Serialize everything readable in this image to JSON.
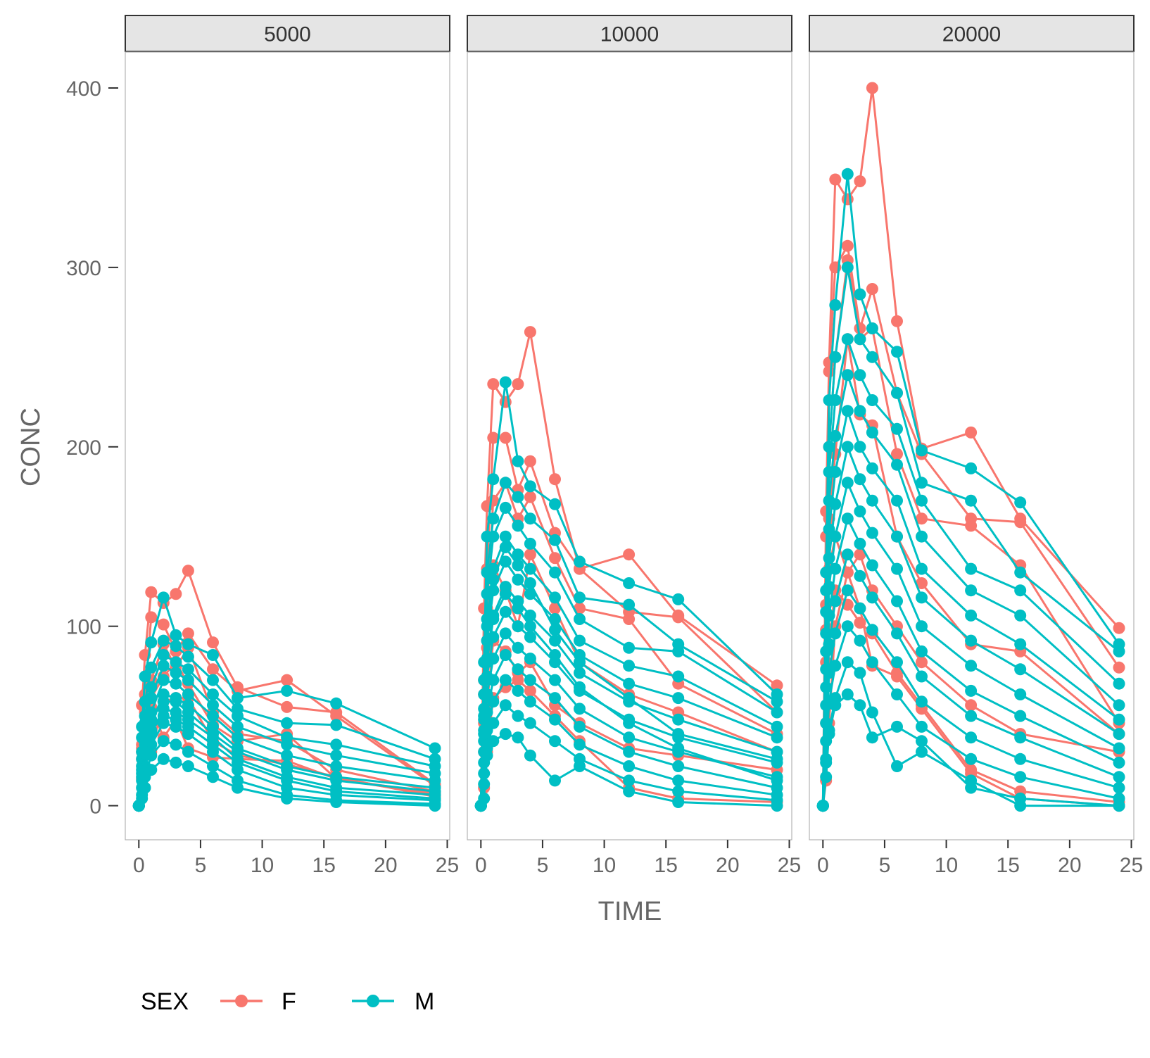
{
  "chart_data": {
    "type": "line",
    "xlabel": "TIME",
    "ylabel": "CONC",
    "xlim": [
      -1.1,
      25.2
    ],
    "ylim": [
      -19,
      420
    ],
    "xticks": [
      0,
      5,
      10,
      15,
      20,
      25
    ],
    "yticks": [
      0,
      100,
      200,
      300,
      400
    ],
    "xtick_labels": [
      "0",
      "5",
      "10",
      "15",
      "20",
      "25"
    ],
    "ytick_labels": [
      "0",
      "100",
      "200",
      "300",
      "400"
    ],
    "grid": false,
    "legend": {
      "title": "SEX",
      "placement": "bottom-left",
      "entries": [
        {
          "label": "F",
          "color": "#F8766D"
        },
        {
          "label": "M",
          "color": "#00BFC4"
        }
      ]
    },
    "x": [
      0,
      0.25,
      0.5,
      1,
      2,
      3,
      4,
      6,
      8,
      12,
      16,
      24
    ],
    "panels": [
      {
        "label": "5000",
        "series": [
          {
            "group": "F",
            "values": [
              0,
              56,
              84,
              119,
              113,
              118,
              131,
              91,
              66,
              55,
              52,
              12
            ]
          },
          {
            "group": "F",
            "values": [
              0,
              34,
              62,
              105,
              101,
              86,
              96,
              76,
              64,
              70,
              50,
              11
            ]
          },
          {
            "group": "F",
            "values": [
              0,
              32,
              52,
              70,
              90,
              77,
              88,
              52,
              40,
              36,
              20,
              8
            ]
          },
          {
            "group": "F",
            "values": [
              0,
              15,
              33,
              55,
              38,
              48,
              32,
              27,
              26,
              25,
              15,
              6
            ]
          },
          {
            "group": "F",
            "values": [
              0,
              26,
              31,
              30,
              58,
              60,
              60,
              36,
              28,
              23,
              16,
              5
            ]
          },
          {
            "group": "F",
            "values": [
              0,
              30,
              45,
              60,
              72,
              80,
              68,
              45,
              36,
              40,
              15,
              7
            ]
          },
          {
            "group": "M",
            "values": [
              0,
              44,
              72,
              91,
              116,
              95,
              90,
              84,
              60,
              64,
              57,
              32
            ]
          },
          {
            "group": "M",
            "values": [
              0,
              38,
              58,
              77,
              92,
              89,
              83,
              70,
              54,
              46,
              45,
              26
            ]
          },
          {
            "group": "M",
            "values": [
              0,
              30,
              50,
              66,
              84,
              80,
              76,
              62,
              50,
              38,
              34,
              22
            ]
          },
          {
            "group": "M",
            "values": [
              0,
              26,
              46,
              60,
              78,
              74,
              70,
              56,
              44,
              34,
              28,
              18
            ]
          },
          {
            "group": "M",
            "values": [
              0,
              22,
              40,
              52,
              70,
              68,
              62,
              50,
              38,
              28,
              22,
              14
            ]
          },
          {
            "group": "M",
            "values": [
              0,
              18,
              34,
              46,
              62,
              60,
              56,
              44,
              32,
              22,
              16,
              10
            ]
          },
          {
            "group": "M",
            "values": [
              0,
              14,
              28,
              40,
              54,
              52,
              48,
              38,
              26,
              16,
              10,
              6
            ]
          },
          {
            "group": "M",
            "values": [
              0,
              10,
              22,
              34,
              46,
              44,
              40,
              30,
              20,
              10,
              6,
              3
            ]
          },
          {
            "group": "M",
            "values": [
              0,
              6,
              16,
              28,
              36,
              34,
              30,
              22,
              14,
              6,
              3,
              1
            ]
          },
          {
            "group": "M",
            "values": [
              0,
              4,
              10,
              20,
              26,
              24,
              22,
              16,
              10,
              4,
              2,
              0
            ]
          },
          {
            "group": "M",
            "values": [
              0,
              20,
              36,
              48,
              58,
              58,
              52,
              40,
              30,
              20,
              14,
              8
            ]
          },
          {
            "group": "M",
            "values": [
              0,
              16,
              30,
              42,
              50,
              48,
              44,
              34,
              24,
              14,
              8,
              4
            ]
          }
        ]
      },
      {
        "label": "10000",
        "series": [
          {
            "group": "F",
            "values": [
              0,
              110,
              167,
              235,
              225,
              235,
              264,
              182,
              132,
              140,
              106,
              67
            ]
          },
          {
            "group": "F",
            "values": [
              0,
              70,
              132,
              205,
              205,
              176,
              192,
              152,
              132,
              108,
              105,
              52
            ]
          },
          {
            "group": "F",
            "values": [
              0,
              62,
              110,
              170,
              180,
              160,
              172,
              138,
              110,
              104,
              68,
              40
            ]
          },
          {
            "group": "F",
            "values": [
              0,
              46,
              88,
              134,
              120,
              100,
              140,
              110,
              80,
              62,
              52,
              30
            ]
          },
          {
            "group": "F",
            "values": [
              0,
              30,
              56,
              92,
              86,
              74,
              80,
              56,
              46,
              32,
              28,
              20
            ]
          },
          {
            "group": "F",
            "values": [
              0,
              10,
              30,
              60,
              66,
              70,
              64,
              50,
              36,
              10,
              4,
              2
            ]
          },
          {
            "group": "M",
            "values": [
              0,
              80,
              150,
              182,
              236,
              192,
              178,
              168,
              136,
              124,
              115,
              62
            ]
          },
          {
            "group": "M",
            "values": [
              0,
              70,
              130,
              160,
              180,
              172,
              160,
              148,
              116,
              112,
              90,
              58
            ]
          },
          {
            "group": "M",
            "values": [
              0,
              62,
              118,
              150,
              166,
              156,
              146,
              130,
              104,
              88,
              86,
              52
            ]
          },
          {
            "group": "M",
            "values": [
              0,
              54,
              104,
              132,
              150,
              140,
              132,
              116,
              92,
              78,
              72,
              44
            ]
          },
          {
            "group": "M",
            "values": [
              0,
              48,
              92,
              120,
              136,
              126,
              118,
              104,
              84,
              68,
              60,
              38
            ]
          },
          {
            "group": "M",
            "values": [
              0,
              42,
              82,
              106,
              122,
              114,
              106,
              92,
              74,
              58,
              48,
              30
            ]
          },
          {
            "group": "M",
            "values": [
              0,
              36,
              72,
              94,
              108,
              100,
              94,
              80,
              64,
              48,
              38,
              24
            ]
          },
          {
            "group": "M",
            "values": [
              0,
              30,
              62,
              82,
              96,
              88,
              82,
              70,
              54,
              38,
              30,
              16
            ]
          },
          {
            "group": "M",
            "values": [
              0,
              24,
              52,
              70,
              84,
              76,
              70,
              60,
              44,
              30,
              22,
              10
            ]
          },
          {
            "group": "M",
            "values": [
              0,
              18,
              42,
              58,
              70,
              64,
              58,
              48,
              34,
              22,
              14,
              6
            ]
          },
          {
            "group": "M",
            "values": [
              0,
              12,
              32,
              46,
              56,
              50,
              46,
              36,
              26,
              14,
              8,
              3
            ]
          },
          {
            "group": "M",
            "values": [
              0,
              4,
              28,
              36,
              40,
              38,
              28,
              14,
              22,
              8,
              2,
              0
            ]
          },
          {
            "group": "M",
            "values": [
              0,
              50,
              100,
              126,
              144,
              134,
              124,
              98,
              80,
              60,
              40,
              26
            ]
          },
          {
            "group": "M",
            "values": [
              0,
              40,
              80,
              104,
              118,
              110,
              100,
              84,
              66,
              46,
              32,
              14
            ]
          }
        ]
      },
      {
        "label": "20000",
        "series": [
          {
            "group": "F",
            "values": [
              0,
              164,
              247,
              349,
              338,
              348,
              400,
              270,
              199,
              208,
              160,
              99
            ]
          },
          {
            "group": "F",
            "values": [
              0,
              150,
              242,
              300,
              312,
              266,
              288,
              230,
              196,
              160,
              158,
              77
            ]
          },
          {
            "group": "F",
            "values": [
              0,
              112,
              200,
              250,
              304,
              260,
              266,
              196,
              160,
              156,
              134,
              46
            ]
          },
          {
            "group": "F",
            "values": [
              0,
              98,
              160,
              196,
              260,
              218,
              212,
              150,
              124,
              90,
              86,
              40
            ]
          },
          {
            "group": "F",
            "values": [
              0,
              80,
              132,
              150,
              130,
              140,
              120,
              100,
              80,
              56,
              40,
              30
            ]
          },
          {
            "group": "F",
            "values": [
              0,
              46,
              90,
              120,
              112,
              102,
              96,
              74,
              56,
              20,
              8,
              2
            ]
          },
          {
            "group": "F",
            "values": [
              0,
              14,
              46,
              100,
              130,
              110,
              78,
              72,
              54,
              18,
              4,
              0
            ]
          },
          {
            "group": "M",
            "values": [
              0,
              130,
              226,
              279,
              352,
              285,
              266,
              253,
              198,
              188,
              169,
              90
            ]
          },
          {
            "group": "M",
            "values": [
              0,
              120,
              200,
              250,
              300,
              260,
              250,
              230,
              180,
              170,
              130,
              86
            ]
          },
          {
            "group": "M",
            "values": [
              0,
              108,
              186,
              226,
              260,
              240,
              226,
              210,
              170,
              132,
              120,
              68
            ]
          },
          {
            "group": "M",
            "values": [
              0,
              96,
              170,
              206,
              240,
              220,
              208,
              190,
              150,
              120,
              106,
              56
            ]
          },
          {
            "group": "M",
            "values": [
              0,
              86,
              154,
              186,
              220,
              200,
              188,
              170,
              132,
              106,
              90,
              48
            ]
          },
          {
            "group": "M",
            "values": [
              0,
              76,
              138,
              168,
              200,
              182,
              170,
              150,
              116,
              92,
              76,
              40
            ]
          },
          {
            "group": "M",
            "values": [
              0,
              66,
              122,
              150,
              180,
              164,
              152,
              132,
              100,
              78,
              62,
              32
            ]
          },
          {
            "group": "M",
            "values": [
              0,
              56,
              106,
              132,
              160,
              146,
              134,
              114,
              86,
              64,
              50,
              24
            ]
          },
          {
            "group": "M",
            "values": [
              0,
              46,
              90,
              114,
              140,
              128,
              116,
              96,
              72,
              50,
              38,
              16
            ]
          },
          {
            "group": "M",
            "values": [
              0,
              36,
              74,
              96,
              120,
              110,
              98,
              80,
              58,
              38,
              26,
              10
            ]
          },
          {
            "group": "M",
            "values": [
              0,
              26,
              58,
              78,
              100,
              92,
              80,
              62,
              44,
              26,
              16,
              4
            ]
          },
          {
            "group": "M",
            "values": [
              0,
              16,
              42,
              60,
              80,
              74,
              52,
              22,
              30,
              14,
              0,
              0
            ]
          },
          {
            "group": "M",
            "values": [
              0,
              24,
              40,
              56,
              62,
              56,
              38,
              44,
              36,
              10,
              4,
              0
            ]
          }
        ]
      }
    ]
  }
}
